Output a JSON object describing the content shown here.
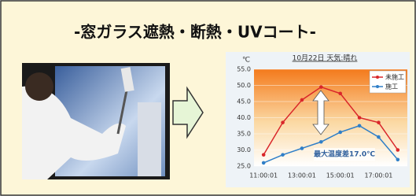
{
  "header": {
    "title": "-窓ガラス遮熱・断熱・UVコート-"
  },
  "chart_data": {
    "type": "line",
    "title": "10月22日 天気:晴れ",
    "y_label": "℃",
    "categories": [
      "11:00:01",
      null,
      "13:00:01",
      null,
      "15:00:01",
      null,
      "17:00:01",
      null
    ],
    "series": [
      {
        "name": "未施工",
        "color": "#d9262a",
        "values": [
          28.5,
          38.5,
          45.5,
          49.5,
          47.5,
          40,
          38.5,
          30
        ]
      },
      {
        "name": "施工",
        "color": "#2f7fc8",
        "values": [
          26,
          28.5,
          30.5,
          32.5,
          35.5,
          37.5,
          34,
          27
        ]
      }
    ],
    "ylim": [
      25,
      55
    ],
    "yticks": [
      {
        "value": 25,
        "label": "25.0"
      },
      {
        "value": 30,
        "label": "30.0"
      },
      {
        "value": 35,
        "label": "35.0"
      },
      {
        "value": 40,
        "label": "40.0"
      },
      {
        "value": 45,
        "label": "45.0"
      },
      {
        "value": 50,
        "label": "50.0"
      },
      {
        "value": 55,
        "label": "55.0"
      }
    ],
    "grid": true,
    "legend": "upper right",
    "annotation": "最大温度差17.0℃"
  }
}
